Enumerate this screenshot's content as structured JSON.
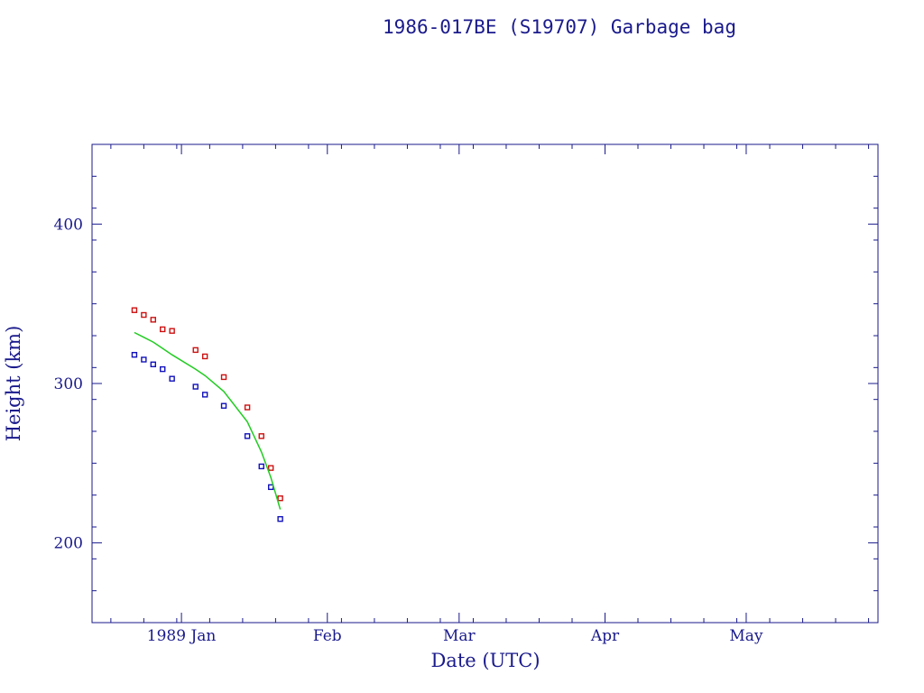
{
  "chart_data": {
    "type": "scatter",
    "title": "1986-017BE (S19707) Garbage bag",
    "xlabel": "Date (UTC)",
    "ylabel": "Height (km)",
    "x_range": [
      "1988-12-13",
      "1989-05-29"
    ],
    "ylim": [
      150,
      450
    ],
    "x_ticks": [
      {
        "date": "1989-01-01",
        "label": "1989 Jan"
      },
      {
        "date": "1989-02-01",
        "label": "Feb"
      },
      {
        "date": "1989-03-01",
        "label": "Mar"
      },
      {
        "date": "1989-04-01",
        "label": "Apr"
      },
      {
        "date": "1989-05-01",
        "label": "May"
      }
    ],
    "y_ticks": [
      {
        "value": 200,
        "label": "200"
      },
      {
        "value": 300,
        "label": "300"
      },
      {
        "value": 400,
        "label": "400"
      }
    ],
    "colors": {
      "axis": "#1a1a8c",
      "apogee": "#cc1111",
      "perigee": "#1111bb",
      "mean": "#22cc22"
    },
    "series": [
      {
        "marker": "square",
        "color": "#cc1111",
        "points": [
          {
            "x": "1988-12-22",
            "y": 346
          },
          {
            "x": "1988-12-24",
            "y": 343
          },
          {
            "x": "1988-12-26",
            "y": 340
          },
          {
            "x": "1988-12-28",
            "y": 334
          },
          {
            "x": "1988-12-30",
            "y": 333
          },
          {
            "x": "1989-01-04",
            "y": 321
          },
          {
            "x": "1989-01-06",
            "y": 317
          },
          {
            "x": "1989-01-10",
            "y": 304
          },
          {
            "x": "1989-01-15",
            "y": 285
          },
          {
            "x": "1989-01-18",
            "y": 267
          },
          {
            "x": "1989-01-20",
            "y": 247
          },
          {
            "x": "1989-01-22",
            "y": 228
          }
        ]
      },
      {
        "marker": "square",
        "color": "#1111bb",
        "points": [
          {
            "x": "1988-12-22",
            "y": 318
          },
          {
            "x": "1988-12-24",
            "y": 315
          },
          {
            "x": "1988-12-26",
            "y": 312
          },
          {
            "x": "1988-12-28",
            "y": 309
          },
          {
            "x": "1988-12-30",
            "y": 303
          },
          {
            "x": "1989-01-04",
            "y": 298
          },
          {
            "x": "1989-01-06",
            "y": 293
          },
          {
            "x": "1989-01-10",
            "y": 286
          },
          {
            "x": "1989-01-15",
            "y": 267
          },
          {
            "x": "1989-01-18",
            "y": 248
          },
          {
            "x": "1989-01-20",
            "y": 235
          },
          {
            "x": "1989-01-22",
            "y": 215
          }
        ]
      },
      {
        "marker": "line",
        "color": "#22cc22",
        "points": [
          {
            "x": "1988-12-22",
            "y": 332
          },
          {
            "x": "1988-12-24",
            "y": 329
          },
          {
            "x": "1988-12-26",
            "y": 326
          },
          {
            "x": "1988-12-28",
            "y": 322
          },
          {
            "x": "1988-12-30",
            "y": 318
          },
          {
            "x": "1989-01-04",
            "y": 309
          },
          {
            "x": "1989-01-06",
            "y": 305
          },
          {
            "x": "1989-01-10",
            "y": 295
          },
          {
            "x": "1989-01-15",
            "y": 276
          },
          {
            "x": "1989-01-18",
            "y": 257
          },
          {
            "x": "1989-01-20",
            "y": 241
          },
          {
            "x": "1989-01-22",
            "y": 221
          }
        ]
      }
    ]
  }
}
